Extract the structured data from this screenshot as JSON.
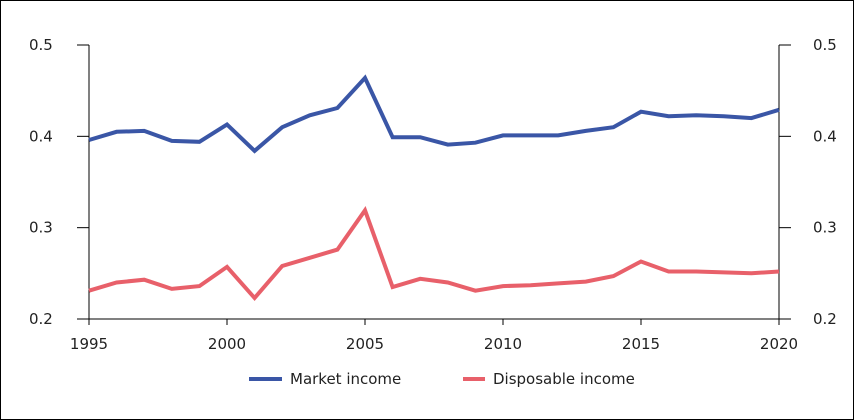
{
  "chart_data": {
    "type": "line",
    "title": "",
    "xlabel": "",
    "ylabel": "",
    "xlim": [
      1995,
      2020
    ],
    "ylim": [
      0.2,
      0.5
    ],
    "x_ticks": [
      "1995",
      "2000",
      "2005",
      "2010",
      "2015",
      "2020"
    ],
    "y_ticks": [
      "0.2",
      "0.3",
      "0.4",
      "0.5"
    ],
    "dual_y_axis": true,
    "grid": false,
    "legend_position": "bottom",
    "x": [
      1995,
      1996,
      1997,
      1998,
      1999,
      2000,
      2001,
      2002,
      2003,
      2004,
      2005,
      2006,
      2007,
      2008,
      2009,
      2010,
      2011,
      2012,
      2013,
      2014,
      2015,
      2016,
      2017,
      2018,
      2019,
      2020
    ],
    "series": [
      {
        "name": "Market income",
        "color": "#3a56a6",
        "values": [
          0.396,
          0.405,
          0.406,
          0.395,
          0.394,
          0.413,
          0.384,
          0.41,
          0.423,
          0.431,
          0.464,
          0.399,
          0.399,
          0.391,
          0.393,
          0.401,
          0.401,
          0.401,
          0.406,
          0.41,
          0.427,
          0.422,
          0.423,
          0.422,
          0.42,
          0.429
        ]
      },
      {
        "name": "Disposable income",
        "color": "#e8606a",
        "values": [
          0.231,
          0.24,
          0.243,
          0.233,
          0.236,
          0.257,
          0.223,
          0.258,
          0.267,
          0.276,
          0.319,
          0.235,
          0.244,
          0.24,
          0.231,
          0.236,
          0.237,
          0.239,
          0.241,
          0.247,
          0.263,
          0.252,
          0.252,
          0.251,
          0.25,
          0.252
        ]
      }
    ]
  }
}
